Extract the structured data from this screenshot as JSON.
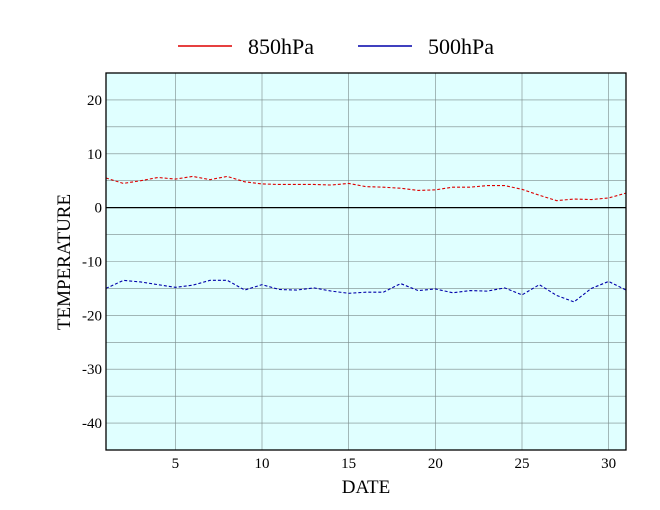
{
  "chart_data": {
    "type": "line",
    "xlabel": "DATE",
    "ylabel": "TEMPERATURE",
    "xlim": [
      1,
      31
    ],
    "ylim": [
      -45,
      25
    ],
    "xticks": [
      5,
      10,
      15,
      20,
      25,
      30
    ],
    "yticks": [
      -40,
      -30,
      -20,
      -10,
      0,
      10,
      20
    ],
    "grid": true,
    "legend_position": "top",
    "zero_line": true,
    "background_color": "#e0ffff",
    "x": [
      1,
      2,
      3,
      4,
      5,
      6,
      7,
      8,
      9,
      10,
      11,
      12,
      13,
      14,
      15,
      16,
      17,
      18,
      19,
      20,
      21,
      22,
      23,
      24,
      25,
      26,
      27,
      28,
      29,
      30,
      31
    ],
    "series": [
      {
        "name": "850hPa",
        "color": "#dd0000",
        "style": "dashed",
        "values": [
          5.5,
          4.5,
          5.0,
          5.6,
          5.3,
          5.8,
          5.2,
          5.8,
          4.8,
          4.4,
          4.3,
          4.3,
          4.3,
          4.2,
          4.5,
          3.9,
          3.8,
          3.6,
          3.2,
          3.3,
          3.8,
          3.8,
          4.1,
          4.1,
          3.4,
          2.3,
          1.3,
          1.6,
          1.5,
          1.8,
          2.7
        ]
      },
      {
        "name": "500hPa",
        "color": "#0000aa",
        "style": "dashed",
        "values": [
          -15.0,
          -13.5,
          -13.8,
          -14.3,
          -14.8,
          -14.4,
          -13.5,
          -13.5,
          -15.3,
          -14.3,
          -15.2,
          -15.3,
          -14.9,
          -15.5,
          -15.9,
          -15.7,
          -15.7,
          -14.1,
          -15.4,
          -15.1,
          -15.8,
          -15.4,
          -15.5,
          -14.9,
          -16.2,
          -14.3,
          -16.3,
          -17.5,
          -15.0,
          -13.7,
          -15.3
        ]
      }
    ]
  }
}
